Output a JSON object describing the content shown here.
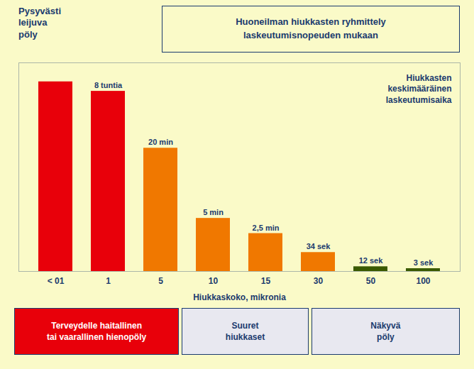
{
  "chart_data": {
    "type": "bar",
    "title": "Huoneilman hiukkasten ryhmittely\nlaskeutumisnopeuden mukaan",
    "categories": [
      "< 01",
      "1",
      "5",
      "10",
      "15",
      "30",
      "50",
      "100"
    ],
    "values": [
      100,
      95,
      65,
      28,
      20,
      10,
      2.5,
      1.5
    ],
    "colors": [
      "#E8000A",
      "#E8000A",
      "#F07800",
      "#F07800",
      "#F07800",
      "#F07800",
      "#3A5A00",
      "#3A5A00"
    ],
    "bar_labels": [
      null,
      "8 tuntia",
      "20 min",
      "5 min",
      "2,5 min",
      "34 sek",
      "12 sek",
      "3 sek"
    ],
    "xlabel": "Hiukkaskoko, mikronia",
    "ylim": [
      0,
      110
    ],
    "yticks": [],
    "tick_labels": "x",
    "grid": false,
    "annotations": [
      "Pysyvästi\nleijuva\npöly",
      "Hiukkasten\nkeskimääräinen\nlaskeutumisaika"
    ],
    "footer": [
      {
        "text": "Terveydelle haitallinen\ntai vaarallinen hienopöly",
        "color": "#E8000A",
        "text_color": "#FFFFFF"
      },
      {
        "text": "Suuret\nhiukkaset",
        "color": "#E8E8F0",
        "text_color": "#1A3A6E"
      },
      {
        "text": "Näkyvä\npöly",
        "color": "#E8E8F0",
        "text_color": "#1A3A6E"
      }
    ]
  }
}
